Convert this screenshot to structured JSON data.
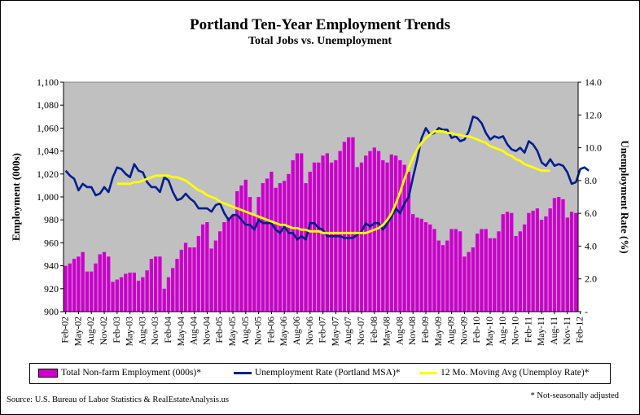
{
  "chart_data": {
    "type": "bar+line",
    "title": "Portland Ten-Year Employment Trends",
    "subtitle": "Total Jobs vs. Unemployment",
    "ylabel": "Employment (000s)",
    "y2label": "Unemployment Rate (%)",
    "ylim": [
      900,
      1100
    ],
    "y2lim": [
      0,
      14
    ],
    "yticks": [
      "900",
      "920",
      "940",
      "960",
      "980",
      "1,000",
      "1,020",
      "1,040",
      "1,060",
      "1,080",
      "1,100"
    ],
    "y2ticks": [
      "-",
      "2.0",
      "4.0",
      "6.0",
      "8.0",
      "10.0",
      "12.0",
      "14.0"
    ],
    "xticks": [
      "Feb-02",
      "May-02",
      "Aug-02",
      "Nov-02",
      "Feb-03",
      "May-03",
      "Aug-03",
      "Nov-03",
      "Feb-04",
      "May-04",
      "Aug-04",
      "Nov-04",
      "Feb-05",
      "May-05",
      "Aug-05",
      "Nov-05",
      "Feb-06",
      "May-06",
      "Aug-06",
      "Nov-06",
      "Feb-07",
      "May-07",
      "Aug-07",
      "Nov-07",
      "Feb-08",
      "May-08",
      "Aug-08",
      "Nov-08",
      "Feb-09",
      "May-09",
      "Aug-09",
      "Nov-09",
      "Feb-10",
      "May-10",
      "Aug-10",
      "Nov-10",
      "Feb-11",
      "May-11",
      "Aug-11",
      "Nov-11",
      "Feb-12"
    ],
    "grid": false,
    "legend_position": "bottom",
    "employment": [
      940,
      942,
      946,
      948,
      952,
      935,
      935,
      942,
      950,
      952,
      948,
      926,
      928,
      930,
      933,
      934,
      934,
      927,
      930,
      936,
      946,
      948,
      948,
      920,
      930,
      938,
      946,
      954,
      960,
      956,
      956,
      966,
      976,
      978,
      955,
      962,
      970,
      978,
      982,
      984,
      1005,
      1010,
      1015,
      1000,
      985,
      1000,
      1012,
      1016,
      1022,
      1008,
      1012,
      1014,
      1020,
      1032,
      1038,
      1038,
      1012,
      1022,
      1030,
      1030,
      1036,
      1038,
      1030,
      1032,
      1040,
      1048,
      1052,
      1052,
      1026,
      1030,
      1036,
      1040,
      1043,
      1040,
      1032,
      1030,
      1037,
      1036,
      1032,
      1028,
      1022,
      985,
      982,
      981,
      978,
      976,
      972,
      962,
      958,
      962,
      972,
      972,
      970,
      948,
      952,
      956,
      968,
      972,
      972,
      964,
      964,
      970,
      985,
      987,
      986,
      966,
      970,
      976,
      986,
      988,
      990,
      980,
      983,
      990,
      999,
      1000,
      998,
      982,
      987,
      986
    ],
    "unemployment": [
      8.6,
      8.3,
      8.1,
      7.4,
      7.8,
      7.6,
      7.6,
      7.1,
      7.2,
      7.6,
      7.3,
      8.2,
      8.8,
      8.7,
      8.4,
      8.2,
      9.0,
      8.6,
      8.5,
      7.9,
      7.6,
      7.6,
      7.3,
      8.2,
      8.0,
      7.3,
      6.8,
      6.9,
      7.2,
      6.9,
      6.7,
      6.3,
      6.3,
      6.3,
      6.1,
      6.5,
      6.6,
      6.0,
      5.6,
      5.9,
      5.9,
      5.6,
      5.3,
      5.3,
      5.0,
      5.6,
      5.4,
      5.4,
      5.4,
      5.0,
      4.8,
      5.2,
      4.8,
      4.8,
      4.4,
      4.6,
      4.4,
      5.4,
      5.4,
      5.1,
      5.0,
      4.6,
      4.6,
      4.6,
      4.6,
      4.5,
      4.5,
      4.5,
      4.7,
      4.9,
      5.4,
      5.2,
      5.4,
      5.4,
      5.0,
      5.4,
      5.8,
      6.3,
      6.0,
      6.6,
      7.0,
      8.2,
      9.3,
      10.6,
      11.2,
      10.8,
      10.9,
      11.2,
      11.1,
      11.1,
      10.6,
      10.7,
      10.4,
      10.5,
      11.0,
      11.9,
      11.8,
      11.5,
      10.9,
      10.5,
      10.7,
      10.6,
      10.7,
      10.2,
      9.9,
      9.8,
      10.0,
      9.7,
      10.4,
      10.2,
      9.8,
      9.1,
      8.9,
      9.3,
      8.9,
      9.0,
      8.9,
      8.5,
      7.8,
      7.9,
      8.7,
      8.8,
      8.6
    ],
    "moving_avg_start_index": 12,
    "moving_avg": [
      7.8,
      7.8,
      7.8,
      7.8,
      7.9,
      7.9,
      8.0,
      8.1,
      8.2,
      8.3,
      8.3,
      8.3,
      8.3,
      8.2,
      8.2,
      8.1,
      8.0,
      7.8,
      7.6,
      7.4,
      7.3,
      7.1,
      7.0,
      6.9,
      6.7,
      6.6,
      6.5,
      6.4,
      6.3,
      6.2,
      6.1,
      6.0,
      5.9,
      5.8,
      5.7,
      5.6,
      5.5,
      5.4,
      5.3,
      5.3,
      5.2,
      5.1,
      5.1,
      5.0,
      5.0,
      4.9,
      4.9,
      4.9,
      4.8,
      4.8,
      4.8,
      4.8,
      4.8,
      4.8,
      4.8,
      4.8,
      4.8,
      4.8,
      4.8,
      4.9,
      5.0,
      5.1,
      5.3,
      5.6,
      6.0,
      6.6,
      7.3,
      8.1,
      8.8,
      9.4,
      9.9,
      10.3,
      10.6,
      10.8,
      11.0,
      11.0,
      11.0,
      10.9,
      10.9,
      10.8,
      10.8,
      10.7,
      10.7,
      10.6,
      10.5,
      10.4,
      10.3,
      10.1,
      10.0,
      9.9,
      9.8,
      9.6,
      9.5,
      9.3,
      9.2,
      9.0,
      8.9,
      8.8,
      8.7,
      8.6,
      8.6,
      8.6
    ],
    "legend": [
      "Total Non-farm Employment (000s)*",
      "Unemployment Rate (Portland MSA)*",
      "12 Mo. Moving Avg (Unemploy Rate)*"
    ],
    "series_colors": [
      "#cc00cc",
      "#001f8c",
      "#ffff00"
    ]
  },
  "source": "Source: U.S. Bureau of Labor Statistics & RealEstateAnalysis.us",
  "note": "* Not-seasonally adjusted"
}
